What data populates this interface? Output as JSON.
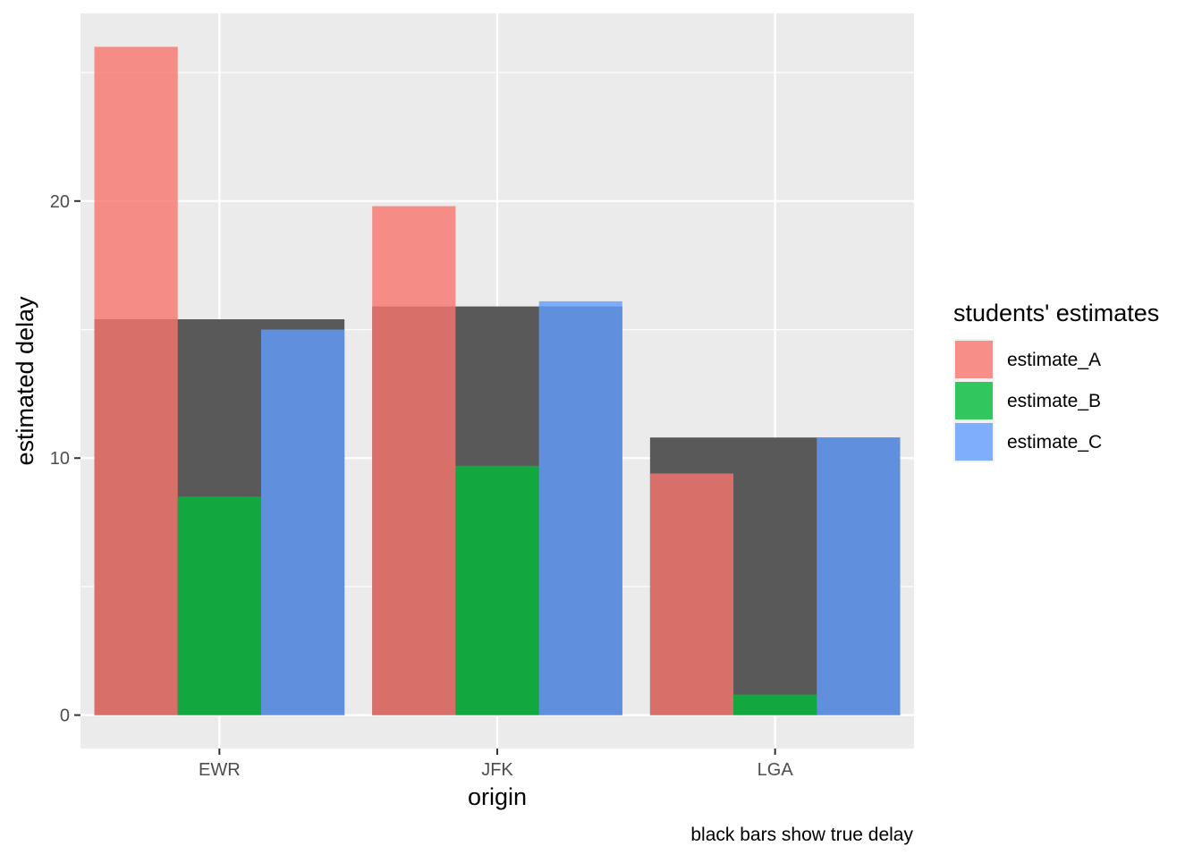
{
  "chart_data": {
    "type": "bar",
    "categories": [
      "EWR",
      "JFK",
      "LGA"
    ],
    "true_delay": [
      15.4,
      15.9,
      10.8
    ],
    "series": [
      {
        "name": "estimate_A",
        "color": "#F8766D",
        "values": [
          26.0,
          19.8,
          9.4
        ]
      },
      {
        "name": "estimate_B",
        "color": "#00BA38",
        "values": [
          8.5,
          9.7,
          0.8
        ]
      },
      {
        "name": "estimate_C",
        "color": "#619CFF",
        "values": [
          15.0,
          16.1,
          10.8
        ]
      }
    ],
    "true_delay_color": "#595959",
    "xlabel": "origin",
    "ylabel": "estimated delay",
    "ylim": [
      -1.3,
      27.3
    ],
    "yticks": [
      0,
      10,
      20
    ],
    "ytick_labels": [
      "0",
      "10",
      "20"
    ],
    "legend_title": "students' estimates",
    "legend_position": "right",
    "caption": "black bars show true delay",
    "panel_background": "#EBEBEB",
    "grid": true
  }
}
